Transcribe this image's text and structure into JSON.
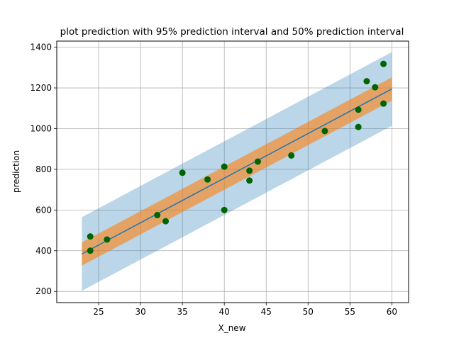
{
  "chart_data": {
    "type": "scatter",
    "title": "plot prediction with 95% prediction interval and 50% prediction interval",
    "xlabel": "X_new",
    "ylabel": "prediction",
    "xlim": [
      20,
      62
    ],
    "ylim": [
      145,
      1430
    ],
    "xticks": [
      25,
      30,
      35,
      40,
      45,
      50,
      55,
      60
    ],
    "yticks": [
      200,
      400,
      600,
      800,
      1000,
      1200,
      1400
    ],
    "grid": true,
    "legend": "none",
    "line": {
      "x": [
        23,
        60
      ],
      "y": [
        384,
        1195
      ],
      "color": "#1f77b4"
    },
    "band_95": {
      "x": [
        23,
        60
      ],
      "lower": [
        203,
        1014
      ],
      "upper": [
        565,
        1376
      ],
      "color": "#1f77b4",
      "alpha": 0.3
    },
    "band_50": {
      "x": [
        23,
        60
      ],
      "lower": [
        327,
        1138
      ],
      "upper": [
        441,
        1252
      ],
      "color": "#ff7f0e",
      "alpha": 0.6
    },
    "points": {
      "color": "#006400",
      "x": [
        24,
        24,
        26,
        32,
        33,
        35,
        38,
        40,
        40,
        43,
        43,
        44,
        48,
        52,
        56,
        56,
        57,
        58,
        59,
        59
      ],
      "y": [
        470,
        400,
        455,
        575,
        545,
        783,
        750,
        813,
        600,
        745,
        793,
        838,
        868,
        988,
        1093,
        1008,
        1233,
        1203,
        1123,
        1318
      ]
    }
  }
}
